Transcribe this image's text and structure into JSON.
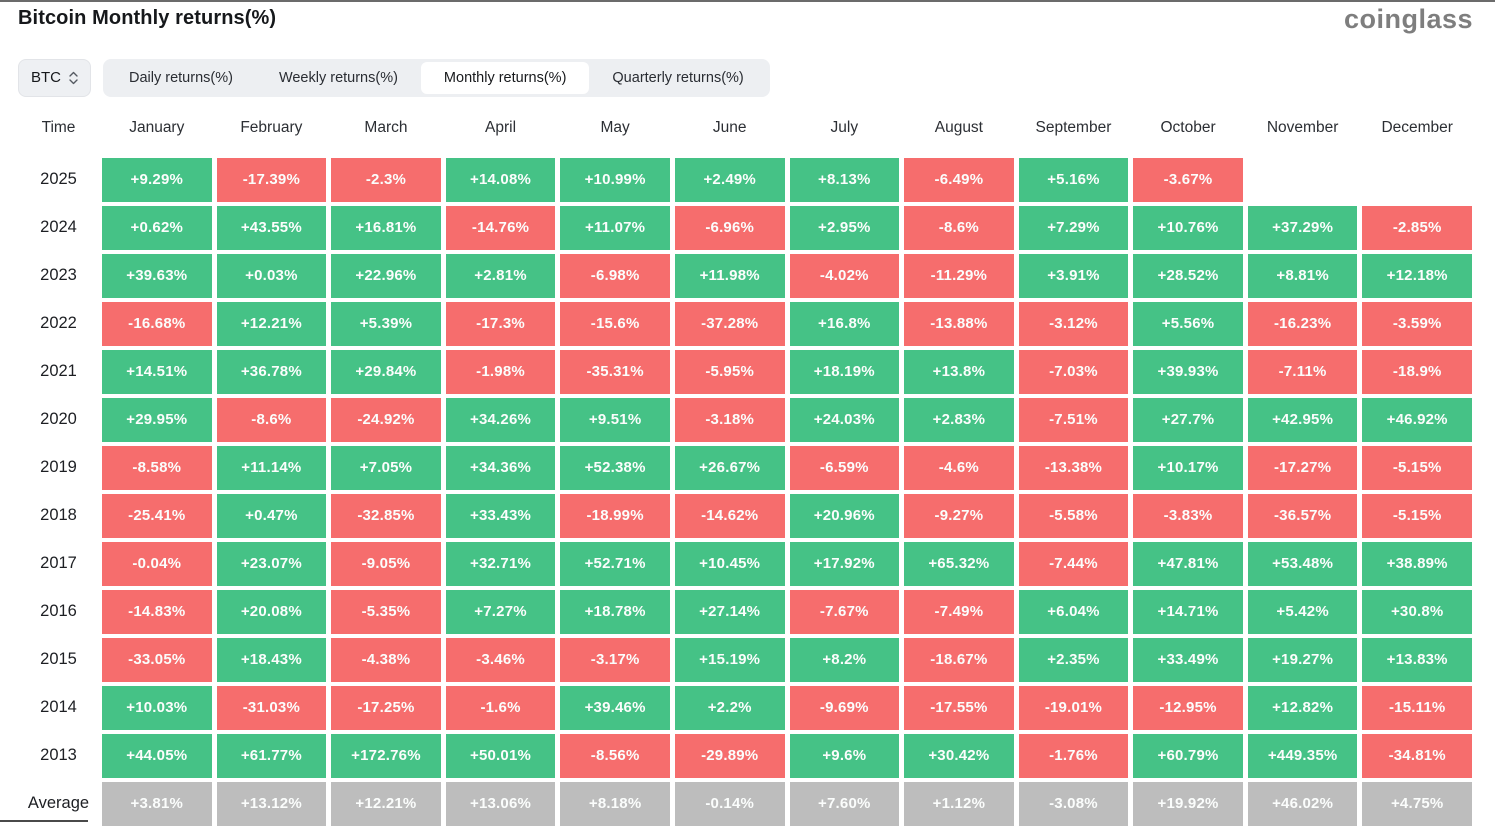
{
  "header": {
    "title": "Bitcoin Monthly returns(%)",
    "logo": "coinglass"
  },
  "controls": {
    "symbol_selector": {
      "value": "BTC"
    },
    "tabs": [
      {
        "label": "Daily returns(%)",
        "active": false
      },
      {
        "label": "Weekly returns(%)",
        "active": false
      },
      {
        "label": "Monthly returns(%)",
        "active": true
      },
      {
        "label": "Quarterly returns(%)",
        "active": false
      }
    ]
  },
  "colors": {
    "positive": "#45C286",
    "negative": "#F66D6D",
    "average": "#BDBDBD"
  },
  "table": {
    "time_header": "Time",
    "month_headers": [
      "January",
      "February",
      "March",
      "April",
      "May",
      "June",
      "July",
      "August",
      "September",
      "October",
      "November",
      "December"
    ],
    "rows": [
      {
        "label": "2025",
        "values": [
          "+9.29%",
          "-17.39%",
          "-2.3%",
          "+14.08%",
          "+10.99%",
          "+2.49%",
          "+8.13%",
          "-6.49%",
          "+5.16%",
          "-3.67%",
          null,
          null
        ]
      },
      {
        "label": "2024",
        "values": [
          "+0.62%",
          "+43.55%",
          "+16.81%",
          "-14.76%",
          "+11.07%",
          "-6.96%",
          "+2.95%",
          "-8.6%",
          "+7.29%",
          "+10.76%",
          "+37.29%",
          "-2.85%"
        ]
      },
      {
        "label": "2023",
        "values": [
          "+39.63%",
          "+0.03%",
          "+22.96%",
          "+2.81%",
          "-6.98%",
          "+11.98%",
          "-4.02%",
          "-11.29%",
          "+3.91%",
          "+28.52%",
          "+8.81%",
          "+12.18%"
        ]
      },
      {
        "label": "2022",
        "values": [
          "-16.68%",
          "+12.21%",
          "+5.39%",
          "-17.3%",
          "-15.6%",
          "-37.28%",
          "+16.8%",
          "-13.88%",
          "-3.12%",
          "+5.56%",
          "-16.23%",
          "-3.59%"
        ]
      },
      {
        "label": "2021",
        "values": [
          "+14.51%",
          "+36.78%",
          "+29.84%",
          "-1.98%",
          "-35.31%",
          "-5.95%",
          "+18.19%",
          "+13.8%",
          "-7.03%",
          "+39.93%",
          "-7.11%",
          "-18.9%"
        ]
      },
      {
        "label": "2020",
        "values": [
          "+29.95%",
          "-8.6%",
          "-24.92%",
          "+34.26%",
          "+9.51%",
          "-3.18%",
          "+24.03%",
          "+2.83%",
          "-7.51%",
          "+27.7%",
          "+42.95%",
          "+46.92%"
        ]
      },
      {
        "label": "2019",
        "values": [
          "-8.58%",
          "+11.14%",
          "+7.05%",
          "+34.36%",
          "+52.38%",
          "+26.67%",
          "-6.59%",
          "-4.6%",
          "-13.38%",
          "+10.17%",
          "-17.27%",
          "-5.15%"
        ]
      },
      {
        "label": "2018",
        "values": [
          "-25.41%",
          "+0.47%",
          "-32.85%",
          "+33.43%",
          "-18.99%",
          "-14.62%",
          "+20.96%",
          "-9.27%",
          "-5.58%",
          "-3.83%",
          "-36.57%",
          "-5.15%"
        ]
      },
      {
        "label": "2017",
        "values": [
          "-0.04%",
          "+23.07%",
          "-9.05%",
          "+32.71%",
          "+52.71%",
          "+10.45%",
          "+17.92%",
          "+65.32%",
          "-7.44%",
          "+47.81%",
          "+53.48%",
          "+38.89%"
        ]
      },
      {
        "label": "2016",
        "values": [
          "-14.83%",
          "+20.08%",
          "-5.35%",
          "+7.27%",
          "+18.78%",
          "+27.14%",
          "-7.67%",
          "-7.49%",
          "+6.04%",
          "+14.71%",
          "+5.42%",
          "+30.8%"
        ]
      },
      {
        "label": "2015",
        "values": [
          "-33.05%",
          "+18.43%",
          "-4.38%",
          "-3.46%",
          "-3.17%",
          "+15.19%",
          "+8.2%",
          "-18.67%",
          "+2.35%",
          "+33.49%",
          "+19.27%",
          "+13.83%"
        ]
      },
      {
        "label": "2014",
        "values": [
          "+10.03%",
          "-31.03%",
          "-17.25%",
          "-1.6%",
          "+39.46%",
          "+2.2%",
          "-9.69%",
          "-17.55%",
          "-19.01%",
          "-12.95%",
          "+12.82%",
          "-15.11%"
        ]
      },
      {
        "label": "2013",
        "values": [
          "+44.05%",
          "+61.77%",
          "+172.76%",
          "+50.01%",
          "-8.56%",
          "-29.89%",
          "+9.6%",
          "+30.42%",
          "-1.76%",
          "+60.79%",
          "+449.35%",
          "-34.81%"
        ]
      },
      {
        "label": "Average",
        "average": true,
        "values": [
          "+3.81%",
          "+13.12%",
          "+12.21%",
          "+13.06%",
          "+8.18%",
          "-0.14%",
          "+7.60%",
          "+1.12%",
          "-3.08%",
          "+19.92%",
          "+46.02%",
          "+4.75%"
        ]
      }
    ]
  }
}
